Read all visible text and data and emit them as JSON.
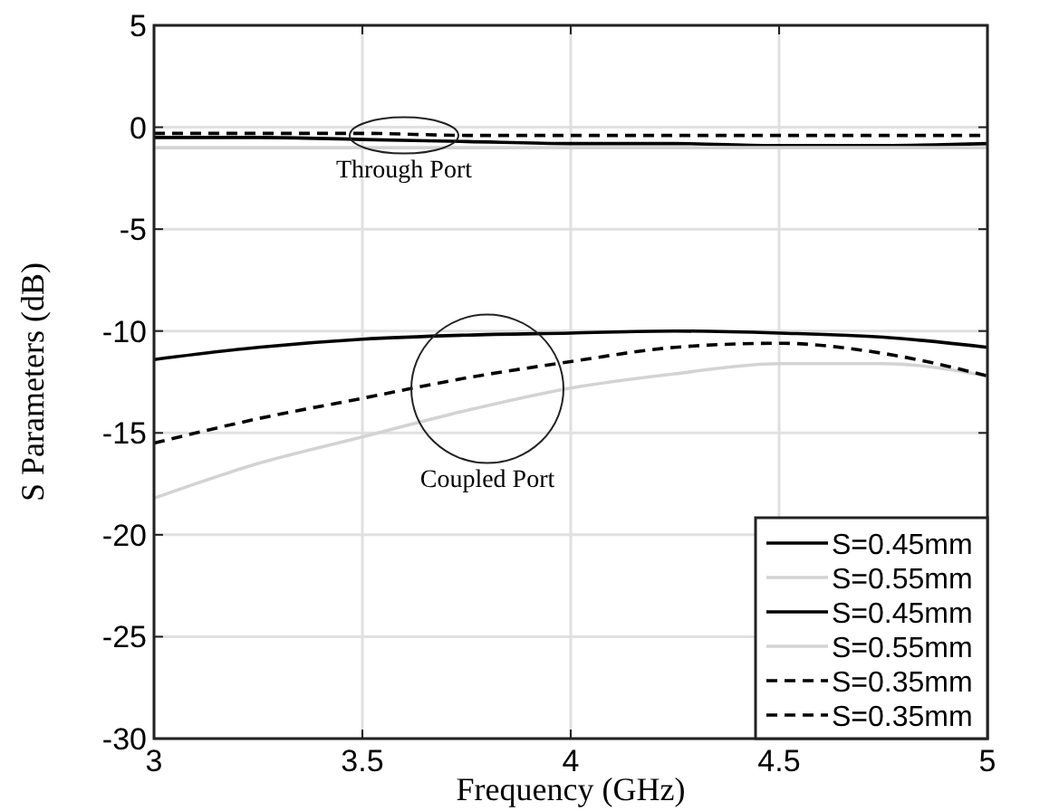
{
  "chart_data": {
    "type": "line",
    "xlabel": "Frequency (GHz)",
    "ylabel": "S Parameters (dB)",
    "xlim": [
      3,
      5
    ],
    "xticks": [
      3,
      3.5,
      4,
      4.5,
      5
    ],
    "ylim": [
      -30,
      5
    ],
    "yticks": [
      -30,
      -25,
      -20,
      -15,
      -10,
      -5,
      0,
      5
    ],
    "grid": true,
    "legend": "bottom right",
    "x": [
      3,
      3.25,
      3.5,
      3.75,
      4,
      4.25,
      4.5,
      4.75,
      5
    ],
    "series": [
      {
        "name": "S=0.45mm",
        "color": "#000000",
        "line_style": "solid",
        "values": [
          -0.5,
          -0.5,
          -0.6,
          -0.7,
          -0.8,
          -0.8,
          -0.9,
          -0.9,
          -0.8
        ]
      },
      {
        "name": "S=0.55mm",
        "color": "#d3d3d3",
        "line_style": "solid",
        "values": [
          -1.0,
          -1.0,
          -1.0,
          -1.0,
          -1.0,
          -1.0,
          -1.0,
          -1.0,
          -1.0
        ]
      },
      {
        "name": "S=0.45mm",
        "color": "#000000",
        "line_style": "solid",
        "values": [
          -11.4,
          -10.8,
          -10.4,
          -10.2,
          -10.1,
          -10.0,
          -10.1,
          -10.3,
          -10.8
        ]
      },
      {
        "name": "S=0.55mm",
        "color": "#d3d3d3",
        "line_style": "solid",
        "values": [
          -18.2,
          -16.5,
          -15.2,
          -13.9,
          -12.8,
          -12.1,
          -11.6,
          -11.6,
          -12.2
        ]
      },
      {
        "name": "S=0.35mm",
        "color": "#000000",
        "line_style": "dashed",
        "values": [
          -0.3,
          -0.3,
          -0.3,
          -0.4,
          -0.4,
          -0.4,
          -0.4,
          -0.4,
          -0.4
        ]
      },
      {
        "name": "S=0.35mm",
        "color": "#000000",
        "line_style": "dashed",
        "values": [
          -15.5,
          -14.3,
          -13.3,
          -12.3,
          -11.5,
          -10.8,
          -10.6,
          -11.1,
          -12.2
        ]
      }
    ],
    "annotations": [
      "Through Port",
      "Coupled Port"
    ]
  }
}
